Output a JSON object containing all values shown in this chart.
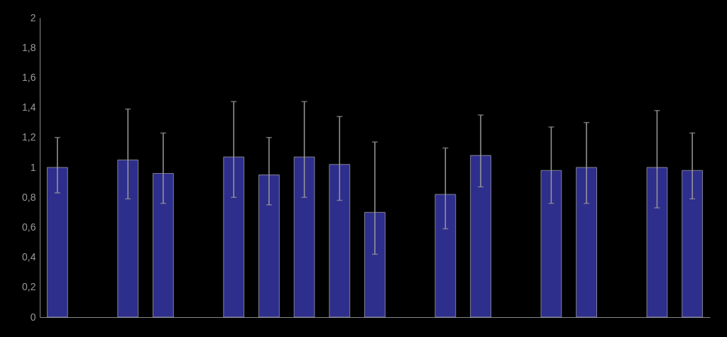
{
  "chart_data": {
    "type": "bar",
    "categories": [
      null,
      null,
      null,
      null,
      null,
      null,
      null,
      null,
      null,
      null,
      null,
      null,
      null,
      null,
      null,
      null,
      null,
      null,
      null
    ],
    "values": [
      1.0,
      null,
      1.05,
      0.96,
      null,
      1.07,
      0.95,
      1.07,
      1.02,
      0.7,
      null,
      0.82,
      1.08,
      null,
      0.98,
      1.0,
      null,
      1.0,
      0.98
    ],
    "errors": [
      [
        0.83,
        1.2
      ],
      null,
      [
        0.79,
        1.39
      ],
      [
        0.76,
        1.23
      ],
      null,
      [
        0.8,
        1.44
      ],
      [
        0.75,
        1.2
      ],
      [
        0.8,
        1.44
      ],
      [
        0.78,
        1.34
      ],
      [
        0.42,
        1.17
      ],
      null,
      [
        0.59,
        1.13
      ],
      [
        0.87,
        1.35
      ],
      null,
      [
        0.76,
        1.27
      ],
      [
        0.76,
        1.3
      ],
      null,
      [
        0.73,
        1.38
      ],
      [
        0.79,
        1.23
      ]
    ],
    "color": "#2e2e8c",
    "ylim": [
      0,
      2
    ],
    "yticks": [
      0,
      {
        "value": 0.2,
        "label": "0,2"
      },
      {
        "value": 0.4,
        "label": "0,4"
      },
      {
        "value": 0.6,
        "label": "0,6"
      },
      {
        "value": 0.8,
        "label": "0,8"
      },
      1,
      {
        "value": 1.2,
        "label": "1,2"
      },
      {
        "value": 1.4,
        "label": "1,4"
      },
      {
        "value": 1.6,
        "label": "1,6"
      },
      {
        "value": 1.8,
        "label": "1,8"
      },
      2
    ],
    "tick_labels": "y",
    "grid": false
  }
}
